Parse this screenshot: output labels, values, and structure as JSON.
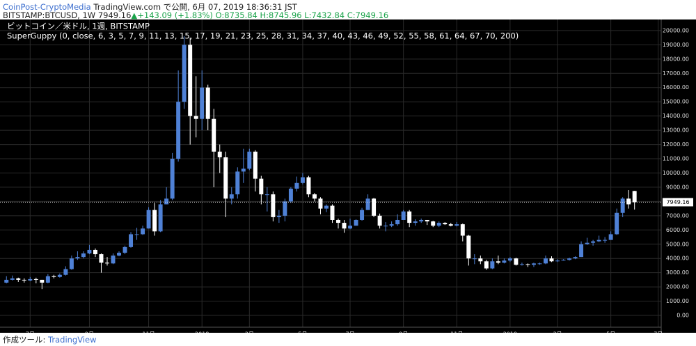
{
  "header": {
    "publisher": "CoinPost-CryptoMedia",
    "published": "TradingView.com で公開, 6月 07, 2019 18:36:31 JST",
    "symbol": "BITSTAMP:BTCUSD, 1W",
    "last": "7949.16",
    "change": "▲+143.09 (+1.83%)",
    "ohlc": "O:8735.84 H:8745.96 L:7432.84 C:7949.16"
  },
  "footer": {
    "made_with": "作成ツール:",
    "brand": "TradingView"
  },
  "chart_data": {
    "type": "candlestick",
    "legend_lines": [
      "ビットコイン／米ドル, 1週, BITSTAMP",
      "SuperGuppy (0, close, 6, 3, 5, 7, 9, 11, 13, 15, 17, 19, 21, 23, 25, 28, 31, 34, 37, 40, 43, 46, 49, 52, 55, 58, 61, 64, 67, 70, 200)"
    ],
    "up_color": "#4f81d6",
    "down_color": "#ffffff",
    "background": "#000000",
    "grid": true,
    "categories": [
      null,
      null,
      null,
      null,
      "7月",
      null,
      null,
      null,
      null,
      null,
      null,
      null,
      null,
      null,
      "9月",
      null,
      null,
      null,
      null,
      null,
      null,
      null,
      null,
      null,
      "11月",
      null,
      null,
      null,
      null,
      null,
      null,
      null,
      null,
      "2018",
      null,
      null,
      null,
      null,
      null,
      null,
      null,
      "3月",
      null,
      null,
      null,
      null,
      null,
      null,
      null,
      null,
      "5月",
      null,
      null,
      null,
      null,
      null,
      null,
      null,
      "7月",
      null,
      null,
      null,
      null,
      null,
      null,
      null,
      null,
      "9月",
      null,
      null,
      null,
      null,
      null,
      null,
      null,
      null,
      "11月",
      null,
      null,
      null,
      null,
      null,
      null,
      null,
      null,
      "2019",
      null,
      null,
      null,
      null,
      null,
      null,
      null,
      "3月",
      null,
      null,
      null,
      null,
      null,
      null,
      null,
      null,
      "5月",
      null,
      null,
      null,
      null,
      null,
      null,
      null,
      "7月"
    ],
    "open": [
      2300,
      2500,
      2600,
      2500,
      2450,
      2550,
      2500,
      2300,
      2750,
      2700,
      2850,
      3250,
      4000,
      4100,
      4350,
      4600,
      4300,
      3700,
      3650,
      4200,
      4400,
      4800,
      5700,
      5700,
      6100,
      7400,
      5900,
      7800,
      8200,
      11000,
      15000,
      19000,
      14000,
      13800,
      16000,
      13800,
      11500,
      11100,
      8200,
      8500,
      10100,
      10300,
      11500,
      9600,
      8500,
      8500,
      6900,
      7000,
      8000,
      8900,
      9300,
      9700,
      8500,
      8200,
      7500,
      7700,
      6700,
      6500,
      6100,
      6300,
      6700,
      7400,
      8200,
      7000,
      6300,
      6300,
      6400,
      6700,
      7300,
      6500,
      6600,
      6700,
      6600,
      6300,
      6500,
      6400,
      6300,
      6400,
      5600,
      4000,
      4000,
      3800,
      3300,
      3800,
      3700,
      3850,
      4000,
      3550,
      3600,
      3550,
      3650,
      3650,
      4000,
      3800,
      3850,
      3900,
      4000,
      4100,
      5000,
      5100,
      5200,
      5300,
      5300,
      5700,
      7200,
      8200,
      8735.84,
      null,
      null,
      null,
      null
    ],
    "high": [
      2750,
      2800,
      2650,
      2600,
      2700,
      2650,
      2500,
      2900,
      2850,
      2950,
      3450,
      4200,
      4500,
      4500,
      4950,
      4700,
      4350,
      4100,
      4350,
      4500,
      4900,
      5850,
      6150,
      6300,
      7600,
      7900,
      8100,
      9000,
      11400,
      17200,
      19600,
      19500,
      16800,
      17200,
      16200,
      14500,
      12000,
      11500,
      9000,
      10400,
      11700,
      11700,
      11600,
      9800,
      9000,
      8700,
      7400,
      8200,
      9000,
      9750,
      10000,
      9800,
      8600,
      8300,
      7800,
      7800,
      6800,
      6700,
      6800,
      6750,
      7550,
      8500,
      8250,
      7150,
      6550,
      6600,
      7100,
      7400,
      7400,
      6750,
      6800,
      6700,
      6650,
      6600,
      6550,
      6500,
      6550,
      6450,
      5650,
      4300,
      4200,
      3900,
      4000,
      4200,
      4000,
      4100,
      4050,
      3700,
      3650,
      3700,
      3700,
      4200,
      4150,
      3950,
      3950,
      4050,
      4150,
      5200,
      5450,
      5300,
      5600,
      5500,
      5900,
      7500,
      8300,
      8800,
      8745.96,
      null,
      null,
      null,
      null
    ],
    "low": [
      2250,
      2450,
      2350,
      2300,
      2400,
      2250,
      1850,
      2250,
      2600,
      2650,
      2800,
      3200,
      3900,
      4000,
      4300,
      4100,
      3000,
      3500,
      3600,
      4150,
      4300,
      4750,
      5300,
      5650,
      6100,
      5600,
      5850,
      7800,
      8100,
      10800,
      14500,
      12000,
      12500,
      13000,
      13000,
      9000,
      10000,
      6900,
      7800,
      8200,
      9300,
      10200,
      8700,
      7800,
      7300,
      6600,
      6500,
      6600,
      7900,
      8700,
      9200,
      8300,
      8000,
      7100,
      7250,
      6500,
      6100,
      5800,
      6050,
      6300,
      6650,
      7400,
      6900,
      6100,
      5900,
      6200,
      6300,
      6700,
      6200,
      6300,
      6500,
      6350,
      6200,
      6200,
      6350,
      6250,
      6250,
      5200,
      3500,
      3600,
      3600,
      3200,
      3250,
      3600,
      3650,
      3750,
      3500,
      3500,
      3400,
      3400,
      3550,
      3600,
      3750,
      3750,
      3850,
      3850,
      3950,
      4100,
      4950,
      4900,
      5150,
      5100,
      5300,
      5650,
      6900,
      7500,
      7432.84,
      null,
      null,
      null,
      null
    ],
    "close": [
      2500,
      2600,
      2500,
      2450,
      2550,
      2500,
      2300,
      2750,
      2700,
      2850,
      3250,
      4000,
      4100,
      4350,
      4600,
      4300,
      3700,
      3650,
      4200,
      4400,
      4800,
      5700,
      5700,
      6100,
      7400,
      5900,
      7800,
      8200,
      11000,
      15000,
      19000,
      14000,
      13800,
      16000,
      13800,
      11500,
      11100,
      8200,
      8500,
      10100,
      10300,
      11500,
      9600,
      8500,
      8500,
      6900,
      7000,
      8000,
      8900,
      9300,
      9700,
      8500,
      8200,
      7500,
      7700,
      6700,
      6500,
      6100,
      6300,
      6700,
      7400,
      8200,
      7000,
      6300,
      6300,
      6400,
      6700,
      7300,
      6500,
      6600,
      6700,
      6600,
      6300,
      6500,
      6400,
      6300,
      6400,
      5600,
      4000,
      4000,
      3800,
      3300,
      3800,
      3700,
      3850,
      4000,
      3550,
      3600,
      3550,
      3650,
      3650,
      4000,
      3800,
      3850,
      3900,
      4000,
      4100,
      5000,
      5100,
      5200,
      5300,
      5300,
      5700,
      7200,
      8200,
      7800,
      7949.16,
      null,
      null,
      null,
      null
    ],
    "ylim": [
      -340,
      20680
    ],
    "yticks": [
      {
        "value": 0,
        "label": "0.00"
      },
      {
        "value": 1000,
        "label": "1000.00"
      },
      {
        "value": 2000,
        "label": "2000.00"
      },
      {
        "value": 3000,
        "label": "3000.00"
      },
      {
        "value": 4000,
        "label": "4000.00"
      },
      {
        "value": 5000,
        "label": "5000.00"
      },
      {
        "value": 6000,
        "label": "6000.00"
      },
      {
        "value": 7000,
        "label": "7000.00"
      },
      {
        "value": 8000,
        "label": "8000.00"
      },
      {
        "value": 9000,
        "label": "9000.00"
      },
      {
        "value": 10000,
        "label": "10000.00"
      },
      {
        "value": 11000,
        "label": "11000.00"
      },
      {
        "value": 12000,
        "label": "12000.00"
      },
      {
        "value": 13000,
        "label": "13000.00"
      },
      {
        "value": 14000,
        "label": "14000.00"
      },
      {
        "value": 15000,
        "label": "15000.00"
      },
      {
        "value": 16000,
        "label": "16000.00"
      },
      {
        "value": 17000,
        "label": "17000.00"
      },
      {
        "value": 18000,
        "label": "18000.00"
      },
      {
        "value": 19000,
        "label": "19000.00"
      },
      {
        "value": 20000,
        "label": "20000.00"
      }
    ],
    "last_price": 7949.16
  }
}
